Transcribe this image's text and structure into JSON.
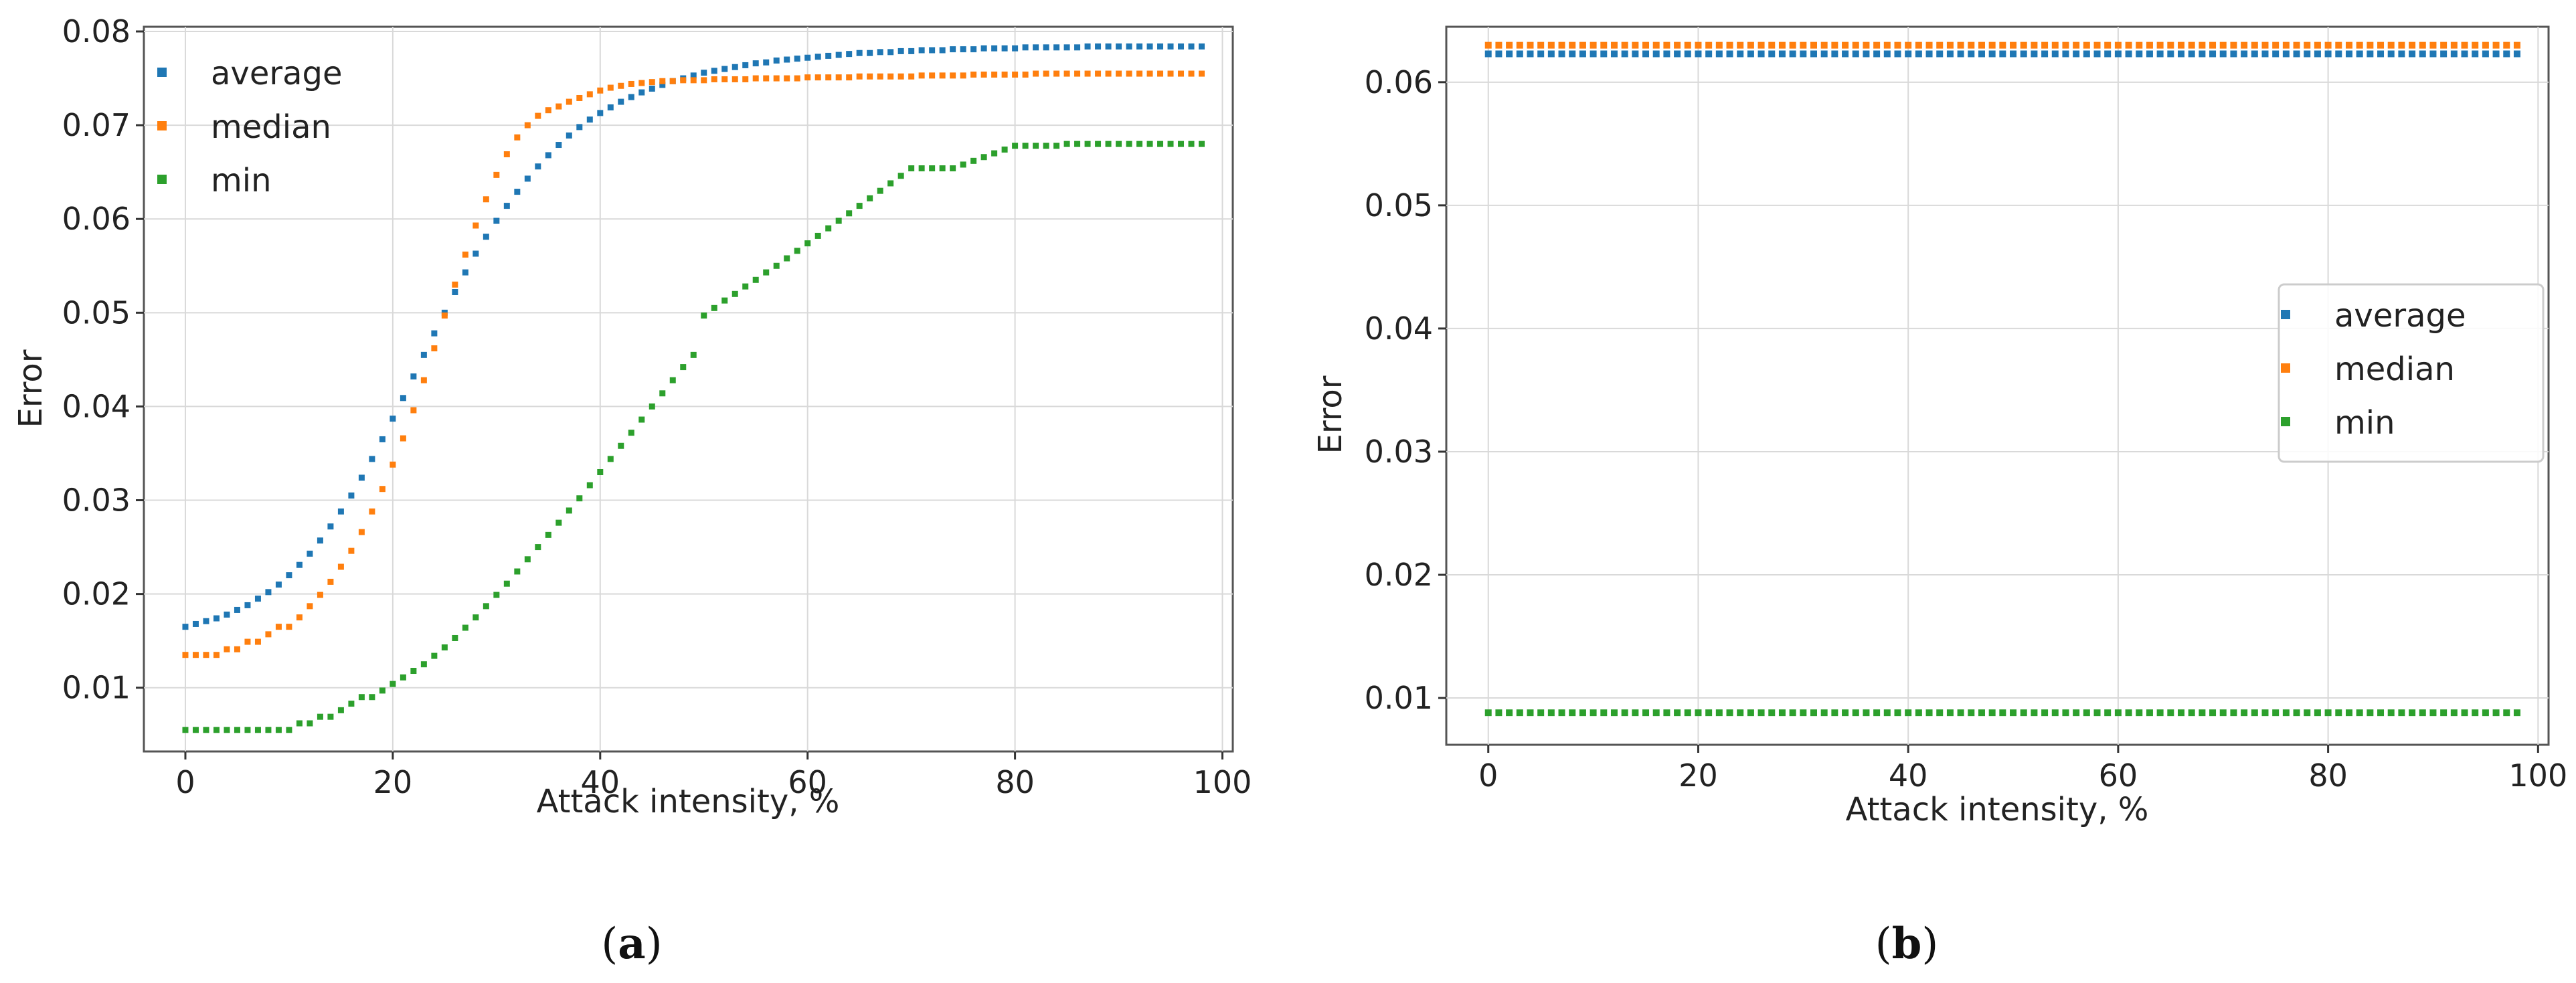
{
  "chart_data": [
    {
      "panel": "a",
      "caption": {
        "open": "(",
        "letter": "a",
        "close": ")"
      },
      "type": "scatter",
      "xlabel": "Attack intensity, %",
      "ylabel": "Error",
      "xlim": [
        -4,
        101
      ],
      "ylim": [
        0.0032,
        0.0805
      ],
      "xticks": [
        0,
        20,
        40,
        60,
        80,
        100
      ],
      "yticks": [
        0.01,
        0.02,
        0.03,
        0.04,
        0.05,
        0.06,
        0.07,
        0.08
      ],
      "grid": true,
      "legend": "top-left",
      "x": [
        0,
        1,
        2,
        3,
        4,
        5,
        6,
        7,
        8,
        9,
        10,
        11,
        12,
        13,
        14,
        15,
        16,
        17,
        18,
        19,
        20,
        21,
        22,
        23,
        24,
        25,
        26,
        27,
        28,
        29,
        30,
        31,
        32,
        33,
        34,
        35,
        36,
        37,
        38,
        39,
        40,
        41,
        42,
        43,
        44,
        45,
        46,
        47,
        48,
        49,
        50,
        51,
        52,
        53,
        54,
        55,
        56,
        57,
        58,
        59,
        60,
        61,
        62,
        63,
        64,
        65,
        66,
        67,
        68,
        69,
        70,
        71,
        72,
        73,
        74,
        75,
        76,
        77,
        78,
        79,
        80,
        81,
        82,
        83,
        84,
        85,
        86,
        87,
        88,
        89,
        90,
        91,
        92,
        93,
        94,
        95,
        96,
        97,
        98
      ],
      "series": [
        {
          "name": "average",
          "color": "#1f77b4",
          "values": [
            0.0165,
            0.0168,
            0.0171,
            0.0174,
            0.0178,
            0.0183,
            0.0188,
            0.0195,
            0.0202,
            0.021,
            0.022,
            0.0231,
            0.0243,
            0.0257,
            0.0272,
            0.0288,
            0.0305,
            0.0324,
            0.0344,
            0.0365,
            0.0387,
            0.0409,
            0.0432,
            0.0455,
            0.0478,
            0.05,
            0.0522,
            0.0543,
            0.0563,
            0.0581,
            0.0598,
            0.0614,
            0.0629,
            0.0643,
            0.0656,
            0.0668,
            0.0679,
            0.0689,
            0.0698,
            0.0706,
            0.0713,
            0.0719,
            0.0725,
            0.073,
            0.0735,
            0.0739,
            0.0743,
            0.0747,
            0.075,
            0.0753,
            0.0756,
            0.0758,
            0.076,
            0.0762,
            0.0764,
            0.0766,
            0.0767,
            0.0769,
            0.077,
            0.0771,
            0.0772,
            0.0773,
            0.0774,
            0.0775,
            0.0776,
            0.0777,
            0.0777,
            0.0778,
            0.0778,
            0.0779,
            0.0779,
            0.078,
            0.078,
            0.078,
            0.0781,
            0.0781,
            0.0781,
            0.0782,
            0.0782,
            0.0782,
            0.0782,
            0.0783,
            0.0783,
            0.0783,
            0.0783,
            0.0783,
            0.0783,
            0.0784,
            0.0784,
            0.0784,
            0.0784,
            0.0784,
            0.0784,
            0.0784,
            0.0784,
            0.0784,
            0.0784,
            0.0784,
            0.0784
          ]
        },
        {
          "name": "median",
          "color": "#ff7f0e",
          "values": [
            0.0135,
            0.0135,
            0.0135,
            0.0135,
            0.0141,
            0.0141,
            0.0149,
            0.0149,
            0.0157,
            0.0165,
            0.0165,
            0.0175,
            0.0187,
            0.0199,
            0.0213,
            0.0229,
            0.0246,
            0.0266,
            0.0288,
            0.0312,
            0.0338,
            0.0366,
            0.0396,
            0.0428,
            0.0462,
            0.0497,
            0.053,
            0.0562,
            0.0593,
            0.0621,
            0.0647,
            0.0669,
            0.0687,
            0.07,
            0.071,
            0.0716,
            0.072,
            0.0725,
            0.0729,
            0.0733,
            0.0737,
            0.074,
            0.0742,
            0.0744,
            0.0745,
            0.0746,
            0.0747,
            0.0747,
            0.0748,
            0.0748,
            0.0748,
            0.0749,
            0.0749,
            0.0749,
            0.0749,
            0.075,
            0.075,
            0.075,
            0.075,
            0.075,
            0.0751,
            0.0751,
            0.0751,
            0.0751,
            0.0751,
            0.0752,
            0.0752,
            0.0752,
            0.0752,
            0.0752,
            0.0752,
            0.0753,
            0.0753,
            0.0753,
            0.0753,
            0.0753,
            0.0754,
            0.0754,
            0.0754,
            0.0754,
            0.0754,
            0.0754,
            0.0755,
            0.0755,
            0.0755,
            0.0755,
            0.0755,
            0.0755,
            0.0755,
            0.0755,
            0.0755,
            0.0755,
            0.0755,
            0.0755,
            0.0755,
            0.0755,
            0.0755,
            0.0755,
            0.0755
          ]
        },
        {
          "name": "min",
          "color": "#2ca02c",
          "values": [
            0.0055,
            0.0055,
            0.0055,
            0.0055,
            0.0055,
            0.0055,
            0.0055,
            0.0055,
            0.0055,
            0.0055,
            0.0055,
            0.0062,
            0.0062,
            0.0069,
            0.0069,
            0.0076,
            0.0083,
            0.009,
            0.009,
            0.0097,
            0.0104,
            0.0111,
            0.0118,
            0.0125,
            0.0134,
            0.0143,
            0.0153,
            0.0164,
            0.0175,
            0.0187,
            0.0199,
            0.0211,
            0.0224,
            0.0237,
            0.025,
            0.0263,
            0.0276,
            0.0289,
            0.0302,
            0.0316,
            0.033,
            0.0344,
            0.0358,
            0.0372,
            0.0386,
            0.04,
            0.0414,
            0.0428,
            0.0442,
            0.0455,
            0.0497,
            0.0505,
            0.0513,
            0.052,
            0.0528,
            0.0535,
            0.0543,
            0.055,
            0.0558,
            0.0566,
            0.0574,
            0.0582,
            0.059,
            0.0598,
            0.0606,
            0.0614,
            0.0622,
            0.063,
            0.0638,
            0.0646,
            0.0654,
            0.0654,
            0.0654,
            0.0654,
            0.0654,
            0.0658,
            0.0662,
            0.0666,
            0.067,
            0.0674,
            0.0678,
            0.0678,
            0.0678,
            0.0678,
            0.0678,
            0.068,
            0.068,
            0.068,
            0.068,
            0.068,
            0.068,
            0.068,
            0.068,
            0.068,
            0.068,
            0.068,
            0.068,
            0.068,
            0.068
          ]
        }
      ]
    },
    {
      "panel": "b",
      "caption": {
        "open": "(",
        "letter": "b",
        "close": ")"
      },
      "type": "scatter",
      "xlabel": "Attack intensity, %",
      "ylabel": "Error",
      "xlim": [
        -4,
        101
      ],
      "ylim": [
        0.0062,
        0.0645
      ],
      "xticks": [
        0,
        20,
        40,
        60,
        80,
        100
      ],
      "yticks": [
        0.01,
        0.02,
        0.03,
        0.04,
        0.05,
        0.06
      ],
      "grid": true,
      "legend": "center-right",
      "x_range": [
        0,
        98
      ],
      "series": [
        {
          "name": "average",
          "color": "#1f77b4",
          "value": 0.0623
        },
        {
          "name": "median",
          "color": "#ff7f0e",
          "value": 0.063
        },
        {
          "name": "min",
          "color": "#2ca02c",
          "value": 0.0088
        }
      ]
    }
  ]
}
